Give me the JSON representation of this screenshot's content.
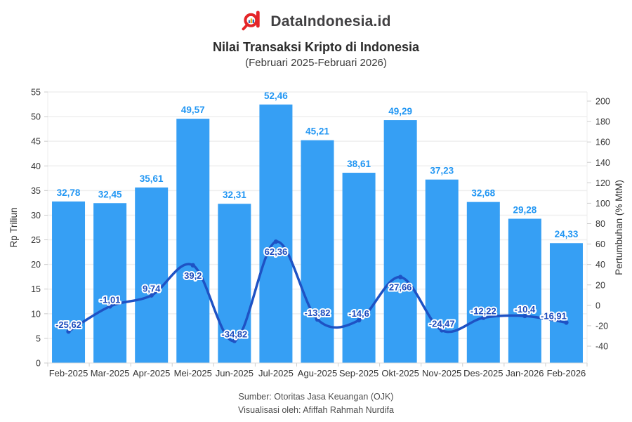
{
  "header": {
    "brand": "DataIndonesia.id",
    "title": "Nilai Transaksi Kripto di Indonesia",
    "subtitle": "(Februari 2025-Februari 2026)"
  },
  "chart_data": {
    "type": "combo",
    "categories": [
      "Feb-2025",
      "Mar-2025",
      "Apr-2025",
      "Mei-2025",
      "Jun-2025",
      "Jul-2025",
      "Agu-2025",
      "Sep-2025",
      "Okt-2025",
      "Nov-2025",
      "Des-2025",
      "Jan-2026",
      "Feb-2026"
    ],
    "series": [
      {
        "name": "Nilai Transaksi",
        "type": "bar",
        "axis": "left",
        "values": [
          32.78,
          32.45,
          35.61,
          49.57,
          32.31,
          52.46,
          45.21,
          38.61,
          49.29,
          37.23,
          32.68,
          29.28,
          24.33
        ],
        "labels": [
          "32,78",
          "32,45",
          "35,61",
          "49,57",
          "32,31",
          "52,46",
          "45,21",
          "38,61",
          "49,29",
          "37,23",
          "32,68",
          "29,28",
          "24,33"
        ]
      },
      {
        "name": "Pertumbuhan",
        "type": "line",
        "axis": "right",
        "values": [
          -25.62,
          -1.01,
          9.74,
          39.2,
          -34.82,
          62.36,
          -13.82,
          -14.6,
          27.66,
          -24.47,
          -12.22,
          -10.4,
          -16.91
        ],
        "labels": [
          "-25,62",
          "-1,01",
          "9,74",
          "39,2",
          "-34,82",
          "62,36",
          "-13,82",
          "-14,6",
          "27,66",
          "-24,47",
          "-12,22",
          "-10,4",
          "-16,91"
        ],
        "label_side": [
          "above",
          "above",
          "above",
          "below",
          "above",
          "below",
          "above",
          "above",
          "below",
          "above",
          "above",
          "above",
          "above"
        ]
      }
    ],
    "left_axis": {
      "title": "Rp Triliun",
      "min": 0,
      "max": 55,
      "step": 5
    },
    "right_axis": {
      "title": "Pertumbuhan (% MtM)",
      "min": -40,
      "max": 200,
      "step": 20
    },
    "grid": true,
    "legend": "none",
    "colors": {
      "bar": "#369ff4",
      "bar_label": "#2196f3",
      "line": "#1e52c4",
      "line_label": "#1c4cbe",
      "grid": "#efefef",
      "plot_border": "#ededed",
      "axis_line": "#dcdcdc",
      "tick": "#cccccc",
      "axis_text": "#333333"
    }
  },
  "footer": {
    "source": "Sumber: Otoritas Jasa Keuangan (OJK)",
    "credit": "Visualisasi oleh: Afiffah Rahmah Nurdifa"
  },
  "brand_colors": {
    "red": "#e42528",
    "text": "#414042",
    "mini_blue": "#2e6db4",
    "mini_yellow": "#f2b01e"
  }
}
